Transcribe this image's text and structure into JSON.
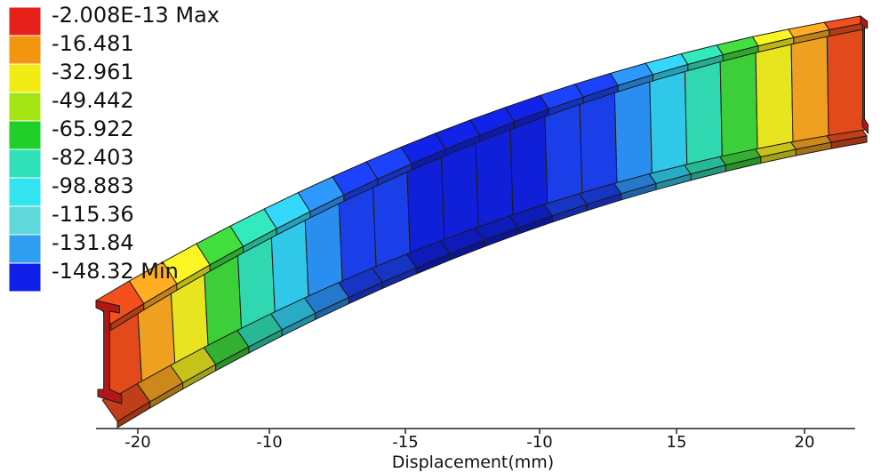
{
  "legend": {
    "items": [
      {
        "label": "-2.008E-13 Max",
        "color": "#e8201c"
      },
      {
        "label": "-16.481",
        "color": "#f2960f"
      },
      {
        "label": "-32.961",
        "color": "#f2ec14"
      },
      {
        "label": "-49.442",
        "color": "#a6e514"
      },
      {
        "label": "-65.922",
        "color": "#1fcf2a"
      },
      {
        "label": "-82.403",
        "color": "#2fe0b8"
      },
      {
        "label": "-98.883",
        "color": "#33e3f0"
      },
      {
        "label": "-115.36",
        "color": "#5ed8d8"
      },
      {
        "label": "-131.84",
        "color": "#2f9ef0"
      },
      {
        "label": "-148.32 Min",
        "color": "#1020e8"
      }
    ]
  },
  "axis": {
    "ticks": [
      "-20",
      "-10",
      "-15",
      "-10",
      "15",
      "20"
    ],
    "title": "Displacement(mm)"
  },
  "beam": {
    "palette": [
      "#c81818",
      "#e24a1c",
      "#f0a020",
      "#e8e420",
      "#b4e620",
      "#3ccf3a",
      "#2fd8b0",
      "#30c8e8",
      "#2a8ef0",
      "#1a3ee8",
      "#1020d8"
    ]
  }
}
